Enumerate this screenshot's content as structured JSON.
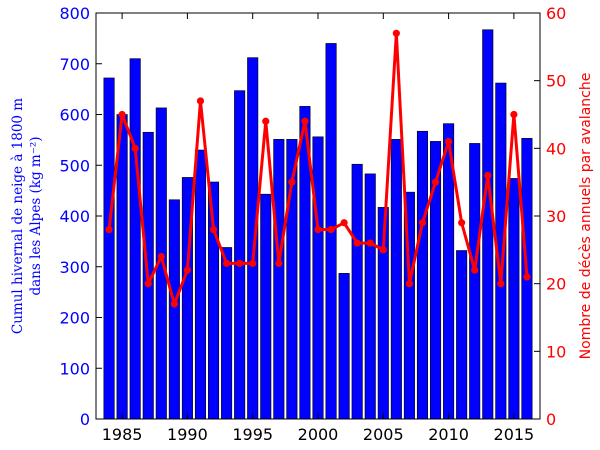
{
  "chart_data": {
    "type": "bar+line",
    "title": "",
    "x": [
      1984,
      1985,
      1986,
      1987,
      1988,
      1989,
      1990,
      1991,
      1992,
      1993,
      1994,
      1995,
      1996,
      1997,
      1998,
      1999,
      2000,
      2001,
      2002,
      2003,
      2004,
      2005,
      2006,
      2007,
      2008,
      2009,
      2010,
      2011,
      2012,
      2013,
      2014,
      2015,
      2016
    ],
    "x_ticks": [
      "1985",
      "1990",
      "1995",
      "2000",
      "2005",
      "2010",
      "2015"
    ],
    "xlim": [
      1983,
      2017
    ],
    "series": [
      {
        "type": "bar",
        "axis": "left",
        "color": "#0000ff",
        "values": [
          672,
          600,
          710,
          565,
          613,
          432,
          476,
          530,
          467,
          338,
          647,
          712,
          443,
          551,
          551,
          616,
          556,
          740,
          287,
          502,
          483,
          417,
          551,
          447,
          567,
          547,
          582,
          332,
          543,
          767,
          662,
          474,
          553
        ]
      },
      {
        "type": "line",
        "axis": "right",
        "color": "#ff0000",
        "values": [
          28,
          45,
          40,
          20,
          24,
          17,
          22,
          47,
          28,
          23,
          23,
          23,
          44,
          23,
          35,
          44,
          28,
          28,
          29,
          26,
          26,
          25,
          57,
          20,
          29,
          35,
          41,
          29,
          22,
          36,
          20,
          45,
          21
        ]
      }
    ],
    "left_axis": {
      "label_line1": "Cumul hivernal de neige à 1800 m",
      "label_line2": "dans les Alpes (kg m⁻²)",
      "ylim": [
        0,
        800
      ],
      "ticks": [
        "0",
        "100",
        "200",
        "300",
        "400",
        "500",
        "600",
        "700",
        "800"
      ],
      "color": "#0000ff"
    },
    "right_axis": {
      "label": "Nombre de décès annuels par avalanche",
      "ylim": [
        0,
        60
      ],
      "ticks": [
        "0",
        "10",
        "20",
        "30",
        "40",
        "50",
        "60"
      ],
      "color": "#ff0000"
    },
    "grid": false,
    "legend": "none"
  }
}
